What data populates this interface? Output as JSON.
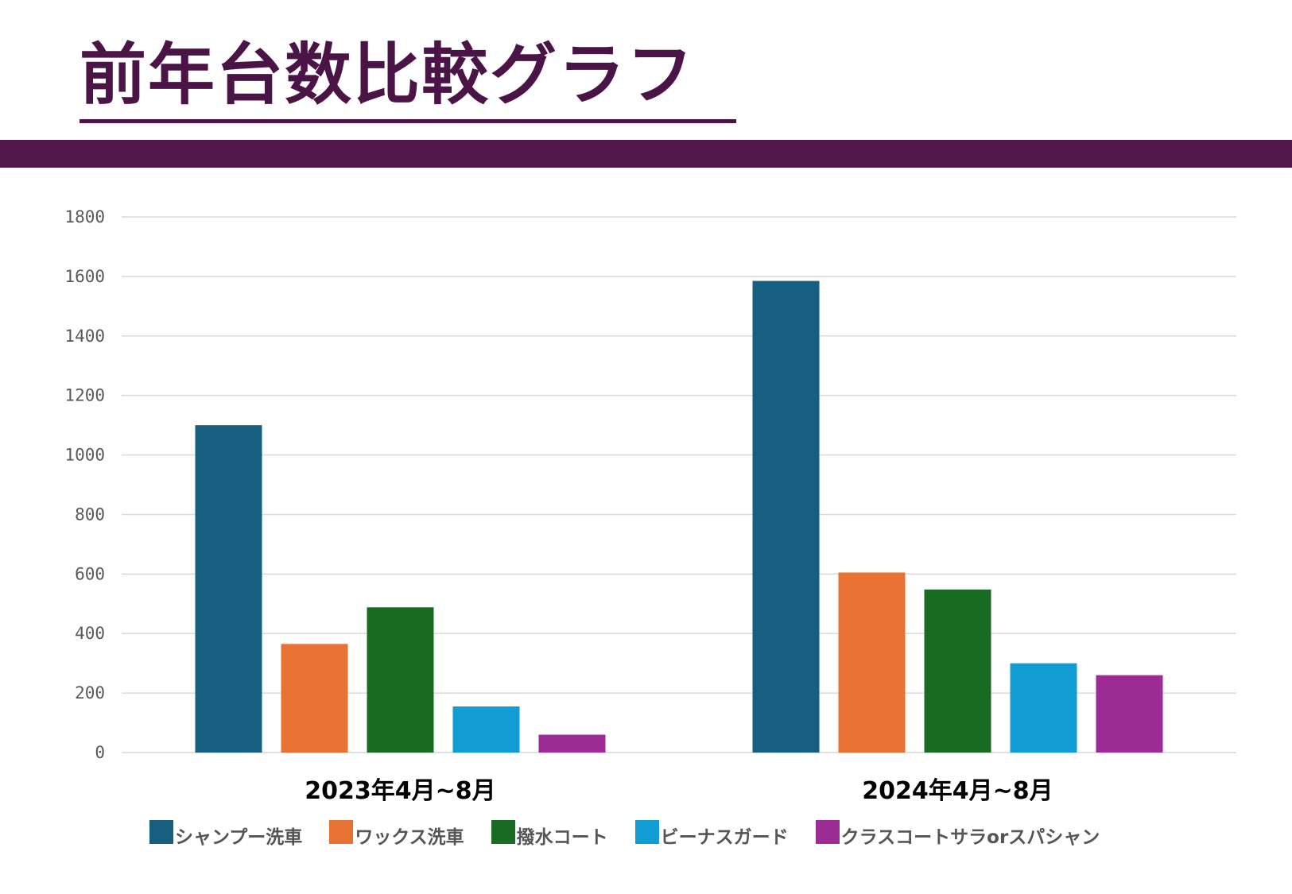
{
  "header": {
    "title": "前年台数比較グラフ",
    "accent_color": "#511748"
  },
  "chart_data": {
    "type": "bar",
    "title": "",
    "xlabel": "",
    "ylabel": "",
    "categories": [
      "2023年4月~8月",
      "2024年4月~8月"
    ],
    "ylim": [
      0,
      1800
    ],
    "yticks": [
      0,
      200,
      400,
      600,
      800,
      1000,
      1200,
      1400,
      1600,
      1800
    ],
    "grid": true,
    "legend_position": "bottom",
    "series": [
      {
        "name": "シャンプー洗車",
        "values": [
          1100,
          1585
        ],
        "color": "#175f81"
      },
      {
        "name": "ワックス洗車",
        "values": [
          365,
          605
        ],
        "color": "#e87233"
      },
      {
        "name": "撥水コート",
        "values": [
          488,
          548
        ],
        "color": "#196b24"
      },
      {
        "name": "ビーナスガード",
        "values": [
          155,
          300
        ],
        "color": "#119dd3"
      },
      {
        "name": "クラスコートサラorスパシャン",
        "values": [
          60,
          260
        ],
        "color": "#9c2b96"
      }
    ]
  }
}
